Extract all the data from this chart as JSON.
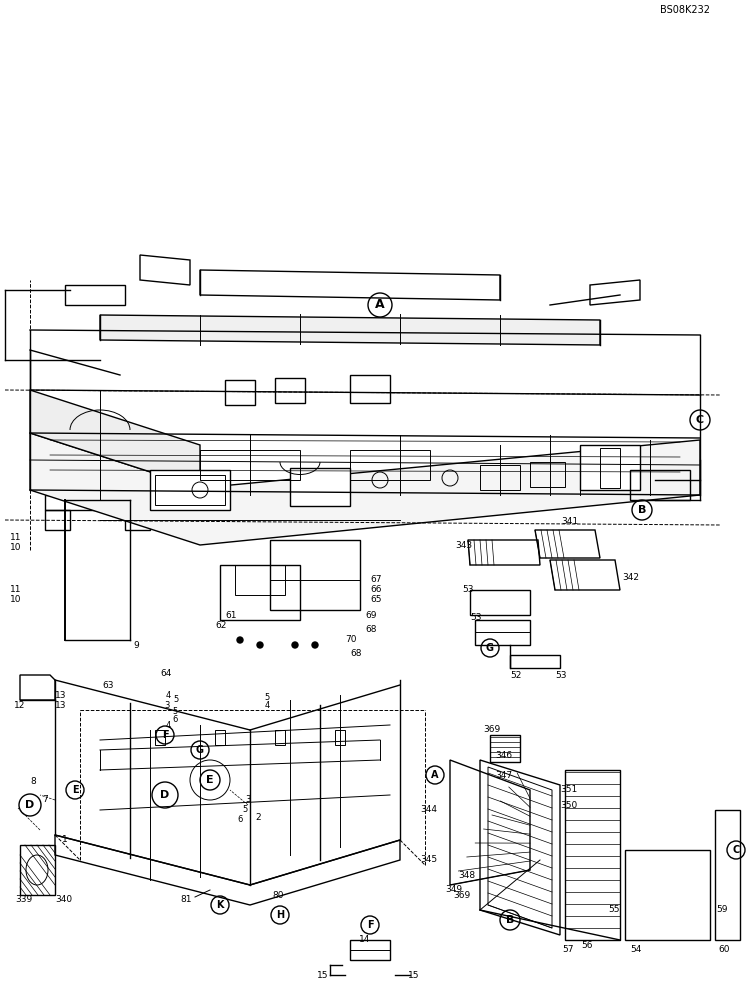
{
  "title": "",
  "watermark": "BS08K232",
  "bg_color": "#ffffff",
  "line_color": "#000000",
  "figsize": [
    7.48,
    10.0
  ],
  "dpi": 100,
  "part_labels": {
    "circled": [
      "A",
      "B",
      "C",
      "D",
      "E",
      "F",
      "G",
      "H",
      "K"
    ],
    "numbered": [
      "1",
      "2",
      "3",
      "4",
      "5",
      "6",
      "7",
      "8",
      "9",
      "10",
      "11",
      "12",
      "13",
      "14",
      "15",
      "52",
      "53",
      "54",
      "55",
      "56",
      "57",
      "59",
      "60",
      "61",
      "62",
      "63",
      "64",
      "65",
      "66",
      "67",
      "68",
      "69",
      "70",
      "80",
      "81",
      "339",
      "340",
      "341",
      "342",
      "343",
      "344",
      "345",
      "346",
      "347",
      "348",
      "349",
      "350",
      "351",
      "369"
    ]
  }
}
